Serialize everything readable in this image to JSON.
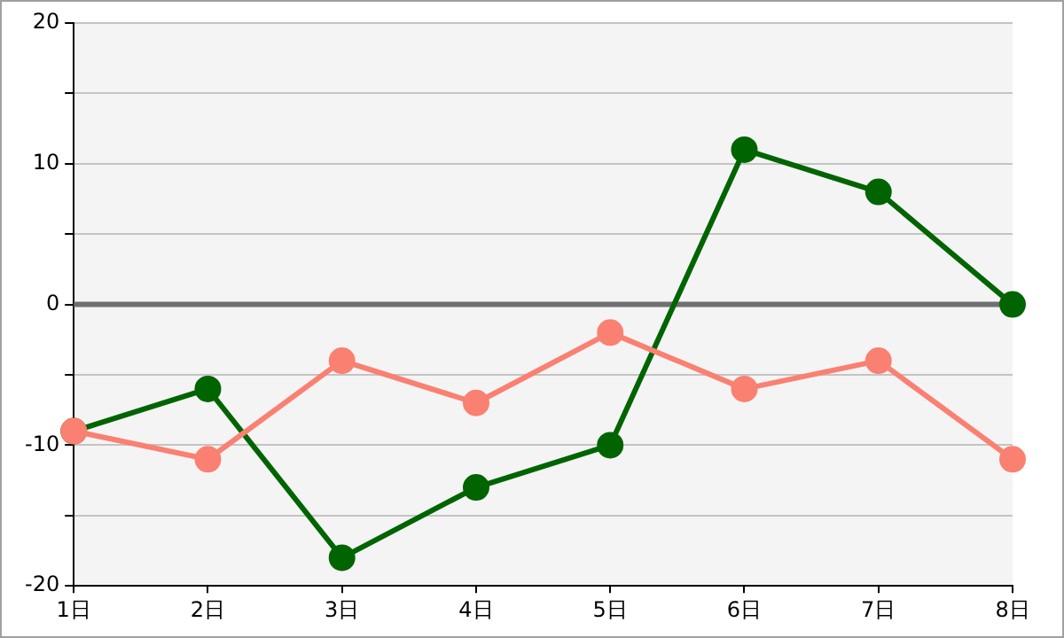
{
  "chart_data": {
    "type": "line",
    "categories": [
      "1日",
      "2日",
      "3日",
      "4日",
      "5日",
      "6日",
      "7日",
      "8日"
    ],
    "series": [
      {
        "color": "#006400",
        "values": [
          -9,
          -6,
          -18,
          -13,
          -10,
          11,
          8,
          0
        ]
      },
      {
        "color": "#fa8072",
        "values": [
          -9,
          -11,
          -4,
          -7,
          -2,
          -6,
          -4,
          -11
        ]
      }
    ],
    "ylim": [
      -20,
      20
    ],
    "yticks": [
      -20,
      {
        "value": -15,
        "label": null
      },
      -10,
      {
        "value": -5,
        "label": null
      },
      0,
      {
        "value": 5,
        "label": null
      },
      10,
      {
        "value": 15,
        "label": null
      },
      20
    ],
    "grid": "y",
    "legend": false,
    "marker": "circle",
    "line_style": "solid",
    "ref_lines": [
      {
        "axis": "y",
        "value": 0,
        "color": "#707070"
      }
    ]
  }
}
